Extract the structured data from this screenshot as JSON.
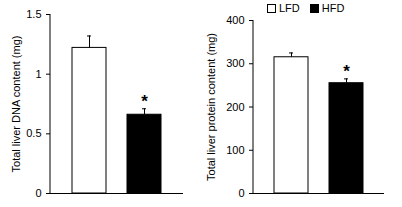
{
  "chart_data": [
    {
      "type": "bar",
      "y_label": "Total liver DNA content (mg)",
      "categories": [
        null
      ],
      "series": [
        {
          "name": "LFD",
          "color": "#ffffff",
          "values": [
            1.22
          ],
          "errors": [
            0.1
          ]
        },
        {
          "name": "HFD",
          "color": "#000000",
          "values": [
            0.66
          ],
          "errors": [
            0.05
          ]
        }
      ],
      "ylim": [
        0,
        1.5
      ],
      "yticks": [
        0,
        0.5,
        1,
        1.5
      ],
      "tick_labels": "y",
      "annotations": [
        {
          "text": "*",
          "series": "HFD"
        }
      ]
    },
    {
      "type": "bar",
      "y_label": "Total liver protein content (mg)",
      "categories": [
        null
      ],
      "series": [
        {
          "name": "LFD",
          "color": "#ffffff",
          "values": [
            315
          ],
          "errors": [
            10
          ]
        },
        {
          "name": "HFD",
          "color": "#000000",
          "values": [
            255
          ],
          "errors": [
            10
          ]
        }
      ],
      "ylim": [
        0,
        400
      ],
      "yticks": [
        0,
        100,
        200,
        300,
        400
      ],
      "tick_labels": "y",
      "legend": "top-left",
      "annotations": [
        {
          "text": "*",
          "series": "HFD"
        }
      ]
    }
  ]
}
